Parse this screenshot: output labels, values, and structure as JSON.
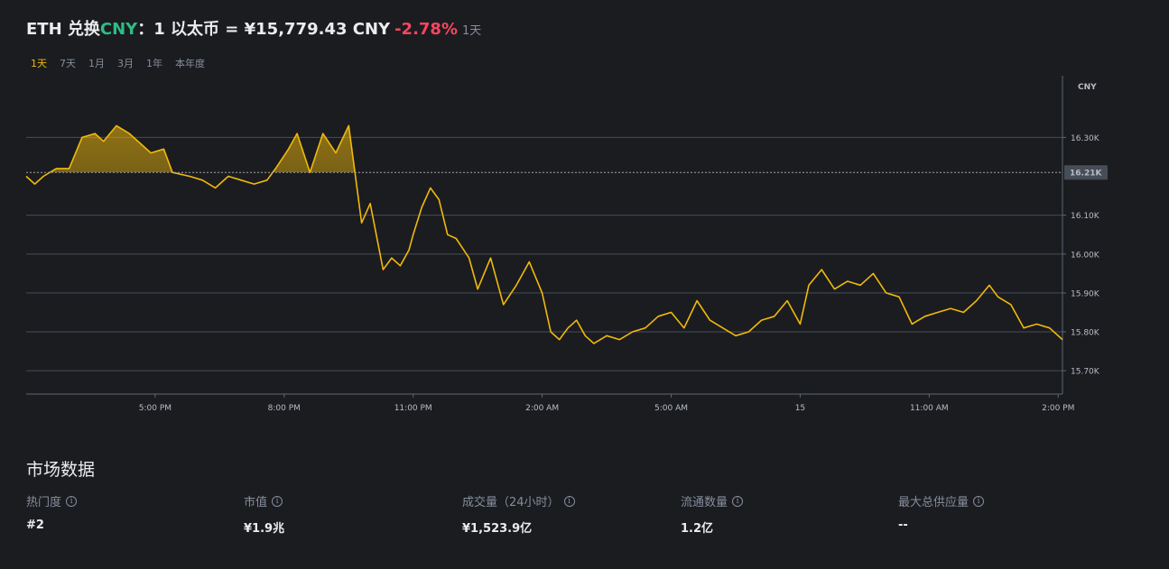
{
  "header": {
    "base": "ETH 兑换",
    "quote": "CNY",
    "separator": "：",
    "rate_text": "1 以太币 = ¥15,779.43 CNY",
    "change": "-2.78%",
    "period": "1天"
  },
  "tabs": [
    {
      "label": "1天",
      "active": true
    },
    {
      "label": "7天",
      "active": false
    },
    {
      "label": "1月",
      "active": false
    },
    {
      "label": "3月",
      "active": false
    },
    {
      "label": "1年",
      "active": false
    },
    {
      "label": "本年度",
      "active": false
    }
  ],
  "chart_data": {
    "type": "line",
    "ylabel": "CNY",
    "yticks": [
      15700,
      15800,
      15900,
      16000,
      16100,
      16300
    ],
    "ytick_labels": [
      "15.70K",
      "15.80K",
      "15.90K",
      "16.00K",
      "16.10K",
      "16.30K"
    ],
    "ylim": [
      15640,
      16440
    ],
    "reference_value": 16210,
    "reference_label": "16.21K",
    "xlim_hours": [
      14.0,
      38.1
    ],
    "xtick_positions_hours": [
      17,
      20,
      23,
      26,
      29,
      32,
      35,
      38
    ],
    "xtick_labels": [
      "5:00 PM",
      "8:00 PM",
      "11:00 PM",
      "2:00 AM",
      "5:00 AM",
      "15",
      "11:00 AM",
      "2:00 PM"
    ],
    "series": [
      {
        "color": "#f0b90b",
        "x": [
          14.0,
          14.2,
          14.4,
          14.7,
          15.0,
          15.3,
          15.6,
          15.8,
          16.1,
          16.4,
          16.7,
          16.9,
          17.2,
          17.4,
          17.8,
          18.1,
          18.4,
          18.7,
          19.0,
          19.3,
          19.6,
          19.8,
          20.1,
          20.3,
          20.6,
          20.9,
          21.2,
          21.5,
          21.8,
          22.0,
          22.3,
          22.5,
          22.7,
          22.9,
          23.0,
          23.2,
          23.4,
          23.6,
          23.8,
          24.0,
          24.3,
          24.5,
          24.8,
          25.1,
          25.4,
          25.7,
          26.0,
          26.2,
          26.4,
          26.6,
          26.8,
          27.0,
          27.2,
          27.5,
          27.8,
          28.1,
          28.4,
          28.7,
          29.0,
          29.3,
          29.6,
          29.9,
          30.2,
          30.5,
          30.8,
          31.1,
          31.4,
          31.7,
          32.0,
          32.2,
          32.5,
          32.8,
          33.1,
          33.4,
          33.7,
          34.0,
          34.3,
          34.6,
          34.9,
          35.2,
          35.5,
          35.8,
          36.1,
          36.4,
          36.6,
          36.9,
          37.2,
          37.5,
          37.8,
          38.1
        ],
        "y": [
          16200,
          16180,
          16200,
          16220,
          16220,
          16300,
          16310,
          16290,
          16330,
          16310,
          16280,
          16260,
          16270,
          16210,
          16200,
          16190,
          16170,
          16200,
          16190,
          16180,
          16190,
          16220,
          16270,
          16310,
          16210,
          16310,
          16260,
          16330,
          16080,
          16130,
          15960,
          15990,
          15970,
          16010,
          16050,
          16120,
          16170,
          16140,
          16050,
          16040,
          15990,
          15910,
          15990,
          15870,
          15920,
          15980,
          15900,
          15800,
          15780,
          15810,
          15830,
          15790,
          15770,
          15790,
          15780,
          15800,
          15810,
          15840,
          15850,
          15810,
          15880,
          15830,
          15810,
          15790,
          15800,
          15830,
          15840,
          15880,
          15820,
          15920,
          15960,
          15910,
          15930,
          15920,
          15950,
          15900,
          15890,
          15820,
          15840,
          15850,
          15860,
          15850,
          15880,
          15920,
          15890,
          15870,
          15810,
          15820,
          15810,
          15780
        ]
      }
    ]
  },
  "market": {
    "title": "市场数据",
    "stats": [
      {
        "label": "热门度",
        "value": "#2"
      },
      {
        "label": "市值",
        "value": "¥1.9兆"
      },
      {
        "label": "成交量（24小时）",
        "value": "¥1,523.9亿"
      },
      {
        "label": "流通数量",
        "value": "1.2亿"
      },
      {
        "label": "最大总供应量",
        "value": "--"
      }
    ]
  },
  "icons": {
    "info": "info-circle-icon"
  },
  "colors": {
    "accent": "#f0b90b",
    "up": "#2ebd85",
    "down": "#f6465d",
    "background": "#1b1c20"
  }
}
